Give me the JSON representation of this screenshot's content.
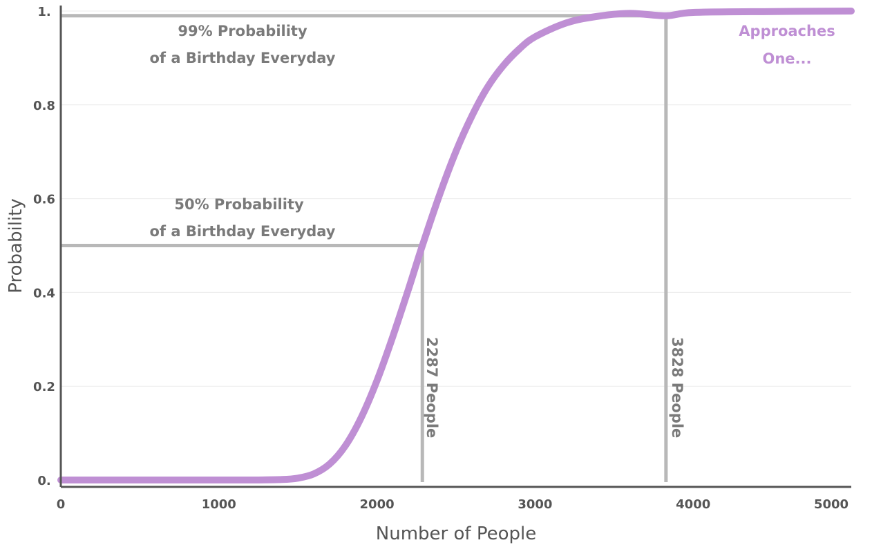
{
  "chart_data": {
    "type": "line",
    "title": "",
    "xlabel": "Number of People",
    "ylabel": "Probability",
    "xlim": [
      0,
      5000
    ],
    "ylim": [
      0,
      1
    ],
    "x_ticks": [
      0,
      1000,
      2000,
      3000,
      4000,
      5000
    ],
    "x_tick_labels": [
      "0",
      "1000",
      "2000",
      "3000",
      "4000",
      "5000"
    ],
    "y_ticks": [
      0,
      0.2,
      0.4,
      0.6,
      0.8,
      1
    ],
    "y_tick_labels": [
      "0.",
      "0.2",
      "0.4",
      "0.6",
      "0.8",
      "1."
    ],
    "grid": true,
    "series": [
      {
        "color": "#bf8fd4",
        "x": [
          0,
          500,
          1000,
          1200,
          1400,
          1500,
          1600,
          1700,
          1800,
          1900,
          2000,
          2100,
          2200,
          2287,
          2400,
          2500,
          2600,
          2700,
          2800,
          2900,
          3000,
          3200,
          3400,
          3600,
          3828,
          4000,
          4500,
          5000
        ],
        "y": [
          0.0,
          0.0,
          0.0,
          0.0,
          0.001,
          0.004,
          0.013,
          0.034,
          0.073,
          0.133,
          0.212,
          0.306,
          0.408,
          0.5,
          0.612,
          0.701,
          0.776,
          0.838,
          0.884,
          0.919,
          0.945,
          0.975,
          0.989,
          0.995,
          0.99,
          0.997,
          0.999,
          1.0
        ]
      }
    ],
    "reference_lines": [
      {
        "kind": "horizontal",
        "y": 0.5,
        "x_from": 0,
        "x_to": 2287
      },
      {
        "kind": "vertical",
        "x": 2287,
        "y_from": 0,
        "y_to": 0.5,
        "label": "2287 People"
      },
      {
        "kind": "horizontal",
        "y": 0.99,
        "x_from": 0,
        "x_to": 3828
      },
      {
        "kind": "vertical",
        "x": 3828,
        "y_from": 0,
        "y_to": 0.99,
        "label": "3828 People"
      }
    ],
    "annotations": [
      {
        "lines": [
          "99% Probability",
          "of a Birthday Everyday"
        ]
      },
      {
        "lines": [
          "50% Probability",
          "of a Birthday Everyday"
        ]
      },
      {
        "lines": [
          "Approaches",
          "One..."
        ],
        "color": "#bf8fd4"
      }
    ],
    "colors": {
      "curve": "#bf8fd4",
      "reference": "#b8b8b8",
      "axis": "#555555",
      "annotation": "#7a7a7a"
    }
  }
}
